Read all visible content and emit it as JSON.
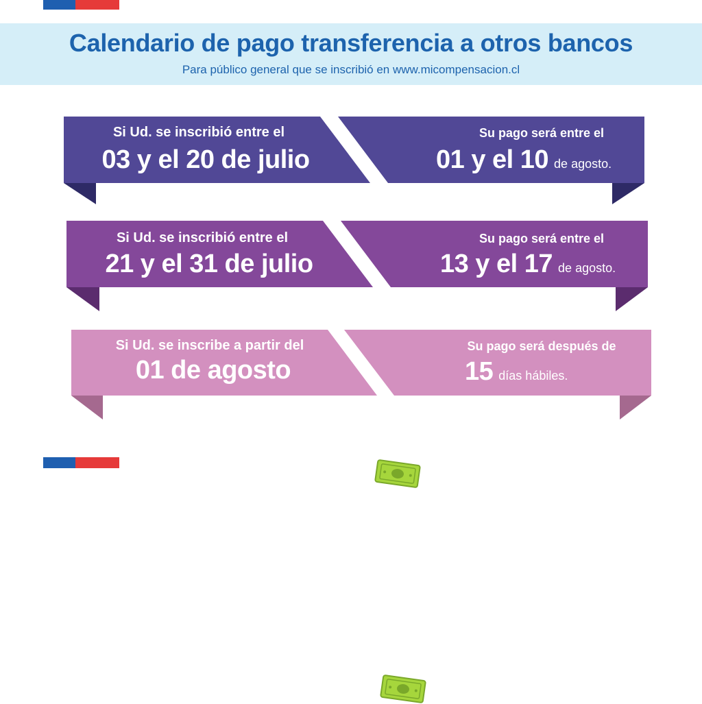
{
  "header": {
    "title": "Calendario de pago transferencia a otros bancos",
    "subtitle": "Para público general que se inscribió en www.micompensacion.cl"
  },
  "rows": [
    {
      "label": "Si Ud. se inscribió entre el",
      "range": "03 y el 20 de julio",
      "pay_label": "Su pago será entre el",
      "pay_value": "01 y el 10",
      "pay_unit": "de agosto.",
      "color": "#514896",
      "fold_color": "#2e2a66"
    },
    {
      "label": "Si Ud. se inscribió entre el",
      "range": "21 y el 31 de julio",
      "pay_label": "Su pago será entre el",
      "pay_value": "13 y el 17",
      "pay_unit": "de agosto.",
      "color": "#84489a",
      "fold_color": "#5b2c6e"
    },
    {
      "label": "Si Ud. se inscribe a partir del",
      "range": "01 de agosto",
      "pay_label": "Su pago será después de",
      "pay_value": "15",
      "pay_unit": "días hábiles.",
      "color": "#d390bf",
      "fold_color": "#a5698f"
    }
  ],
  "colors": {
    "header_bg": "#d5eef8",
    "header_text": "#1d63ad",
    "flag_blue": "#1f5fb0",
    "flag_red": "#e63a39",
    "bill_green": "#a6d63c"
  },
  "icons": [
    "money-bill-icon",
    "money-bill-icon",
    "money-bill-icon"
  ]
}
